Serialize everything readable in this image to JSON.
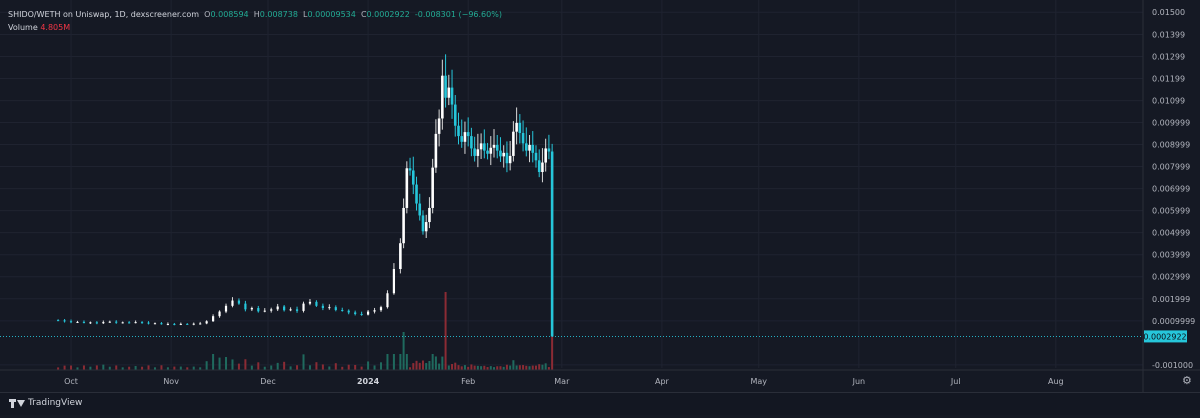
{
  "legend": {
    "symbol": "SHIDO/WETH on Uniswap, 1D, dexscreener.com",
    "o_label": "O",
    "o_value": "0.008594",
    "h_label": "H",
    "h_value": "0.008738",
    "l_label": "L",
    "l_value": "0.00009534",
    "c_label": "C",
    "c_value": "0.0002922",
    "change": "-0.008301 (−96.60%)",
    "volume_label": "Volume",
    "volume_value": "4.805M"
  },
  "footer": {
    "brand": "TradingView"
  },
  "icons": {
    "settings": "gear-icon",
    "logo": "tradingview-logo-icon"
  },
  "colors": {
    "background": "#151924",
    "up": "#26a69a",
    "upbody": "#ffffff",
    "down": "#26c6da",
    "vol_up": "#1f6a5e",
    "vol_down": "#8b2b34",
    "price_line": "#26c6da"
  },
  "chart_data": {
    "type": "candlestick",
    "title": "SHIDO/WETH on Uniswap, 1D, dexscreener.com",
    "y_ticks": [
      "0.01500",
      "0.01399",
      "0.01299",
      "0.01199",
      "0.01099",
      "0.009999",
      "0.008999",
      "0.007999",
      "0.006999",
      "0.005999",
      "0.004999",
      "0.003999",
      "0.002999",
      "0.001999",
      "0.0009999",
      "-0.001000"
    ],
    "y_tick_values": [
      0.015,
      0.01399,
      0.01299,
      0.01199,
      0.01099,
      0.009999,
      0.008999,
      0.007999,
      0.006999,
      0.005999,
      0.004999,
      0.003999,
      0.002999,
      0.001999,
      0.0009999,
      -0.001
    ],
    "ylim": [
      -0.00105,
      0.0151
    ],
    "x_ticks": [
      "Oct",
      "Nov",
      "Dec",
      "2024",
      "Feb",
      "Mar",
      "Apr",
      "May",
      "Jun",
      "Jul",
      "Aug"
    ],
    "x_tick_dates": [
      "2023-10-01",
      "2023-11-01",
      "2023-12-01",
      "2024-01-01",
      "2024-02-01",
      "2024-03-01",
      "2024-04-01",
      "2024-05-01",
      "2024-06-01",
      "2024-07-01",
      "2024-08-01"
    ],
    "x_range": [
      "2023-09-09",
      "2024-08-28"
    ],
    "last_price_label": "0.0002922",
    "last_price": 0.0002922,
    "grid": true,
    "candles_close": [
      [
        "2023-09-27",
        0.00102
      ],
      [
        "2023-09-29",
        0.00098
      ],
      [
        "2023-10-01",
        0.00094
      ],
      [
        "2023-10-03",
        0.00095
      ],
      [
        "2023-10-05",
        0.00091
      ],
      [
        "2023-10-07",
        0.00093
      ],
      [
        "2023-10-09",
        0.00089
      ],
      [
        "2023-10-11",
        0.00094
      ],
      [
        "2023-10-13",
        0.00096
      ],
      [
        "2023-10-15",
        0.00092
      ],
      [
        "2023-10-17",
        0.00093
      ],
      [
        "2023-10-19",
        0.00091
      ],
      [
        "2023-10-21",
        0.00094
      ],
      [
        "2023-10-23",
        0.00092
      ],
      [
        "2023-10-25",
        0.00088
      ],
      [
        "2023-10-27",
        0.00089
      ],
      [
        "2023-10-29",
        0.00085
      ],
      [
        "2023-10-31",
        0.00086
      ],
      [
        "2023-11-02",
        0.00084
      ],
      [
        "2023-11-04",
        0.00086
      ],
      [
        "2023-11-06",
        0.00085
      ],
      [
        "2023-11-08",
        0.00087
      ],
      [
        "2023-11-10",
        0.00088
      ],
      [
        "2023-11-12",
        0.00098
      ],
      [
        "2023-11-14",
        0.00121
      ],
      [
        "2023-11-16",
        0.00142
      ],
      [
        "2023-11-18",
        0.00168
      ],
      [
        "2023-11-20",
        0.00192
      ],
      [
        "2023-11-22",
        0.00178
      ],
      [
        "2023-11-24",
        0.00152
      ],
      [
        "2023-11-26",
        0.00158
      ],
      [
        "2023-11-28",
        0.00143
      ],
      [
        "2023-11-30",
        0.00146
      ],
      [
        "2023-12-02",
        0.00152
      ],
      [
        "2023-12-04",
        0.00165
      ],
      [
        "2023-12-06",
        0.00148
      ],
      [
        "2023-12-08",
        0.00152
      ],
      [
        "2023-12-10",
        0.00145
      ],
      [
        "2023-12-12",
        0.00178
      ],
      [
        "2023-12-14",
        0.00186
      ],
      [
        "2023-12-16",
        0.00168
      ],
      [
        "2023-12-18",
        0.00158
      ],
      [
        "2023-12-20",
        0.00162
      ],
      [
        "2023-12-22",
        0.00149
      ],
      [
        "2023-12-24",
        0.00146
      ],
      [
        "2023-12-26",
        0.00138
      ],
      [
        "2023-12-28",
        0.00131
      ],
      [
        "2023-12-30",
        0.00128
      ],
      [
        "2024-01-01",
        0.00142
      ],
      [
        "2024-01-03",
        0.00148
      ],
      [
        "2024-01-05",
        0.00162
      ],
      [
        "2024-01-07",
        0.00225
      ],
      [
        "2024-01-09",
        0.00335
      ],
      [
        "2024-01-11",
        0.00452
      ],
      [
        "2024-01-12",
        0.00612
      ],
      [
        "2024-01-13",
        0.00792
      ],
      [
        "2024-01-14",
        0.00782
      ],
      [
        "2024-01-15",
        0.00718
      ],
      [
        "2024-01-16",
        0.00632
      ],
      [
        "2024-01-17",
        0.00578
      ],
      [
        "2024-01-18",
        0.00506
      ],
      [
        "2024-01-19",
        0.00548
      ],
      [
        "2024-01-20",
        0.00612
      ],
      [
        "2024-01-21",
        0.00795
      ],
      [
        "2024-01-22",
        0.00948
      ],
      [
        "2024-01-23",
        0.01018
      ],
      [
        "2024-01-24",
        0.01212
      ],
      [
        "2024-01-25",
        0.01112
      ],
      [
        "2024-01-26",
        0.01158
      ],
      [
        "2024-01-27",
        0.01081
      ],
      [
        "2024-01-28",
        0.00985
      ],
      [
        "2024-01-29",
        0.00938
      ],
      [
        "2024-01-30",
        0.00912
      ],
      [
        "2024-01-31",
        0.00956
      ],
      [
        "2024-02-01",
        0.00938
      ],
      [
        "2024-02-02",
        0.00882
      ],
      [
        "2024-02-03",
        0.00848
      ],
      [
        "2024-02-04",
        0.00878
      ],
      [
        "2024-02-05",
        0.00905
      ],
      [
        "2024-02-06",
        0.00872
      ],
      [
        "2024-02-07",
        0.00858
      ],
      [
        "2024-02-08",
        0.00885
      ],
      [
        "2024-02-09",
        0.00898
      ],
      [
        "2024-02-10",
        0.00872
      ],
      [
        "2024-02-11",
        0.00846
      ],
      [
        "2024-02-12",
        0.00862
      ],
      [
        "2024-02-13",
        0.00815
      ],
      [
        "2024-02-14",
        0.00848
      ],
      [
        "2024-02-15",
        0.00958
      ],
      [
        "2024-02-16",
        0.00998
      ],
      [
        "2024-02-17",
        0.00952
      ],
      [
        "2024-02-18",
        0.00905
      ],
      [
        "2024-02-19",
        0.00872
      ],
      [
        "2024-02-20",
        0.00898
      ],
      [
        "2024-02-21",
        0.00862
      ],
      [
        "2024-02-22",
        0.00828
      ],
      [
        "2024-02-23",
        0.00775
      ],
      [
        "2024-02-24",
        0.00818
      ],
      [
        "2024-02-25",
        0.00882
      ],
      [
        "2024-02-26",
        0.00868
      ],
      [
        "2024-02-27",
        0.000292
      ]
    ],
    "volume_peaks": [
      [
        "2024-01-12",
        "tall"
      ],
      [
        "2024-01-25",
        "tallest"
      ],
      [
        "2024-02-27",
        "tall"
      ]
    ]
  }
}
